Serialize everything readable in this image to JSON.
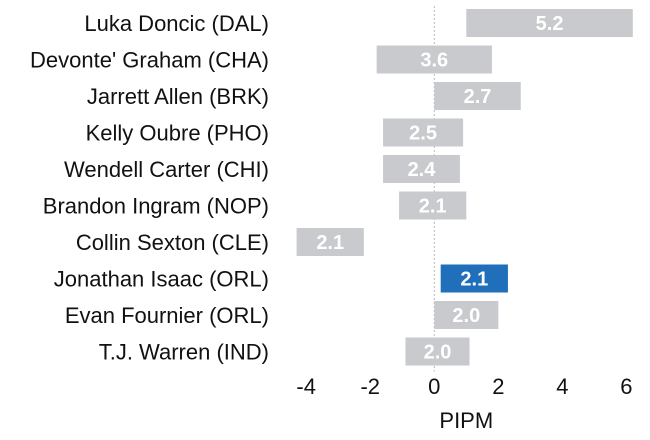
{
  "chart_data": {
    "type": "bar",
    "orientation": "horizontal",
    "title": "",
    "xlabel": "PIPM",
    "ylabel": "",
    "xlim": [
      -4.6,
      6.3
    ],
    "xticks": [
      -4,
      -2,
      0,
      2,
      4,
      6
    ],
    "zero_line": "dotted",
    "grid": false,
    "colors": {
      "default_bar": "#c8cacd",
      "highlight_bar": "#1f6fba",
      "label_text": "#ffffff"
    },
    "categories": [
      "Luka Doncic (DAL)",
      "Devonte' Graham (CHA)",
      "Jarrett Allen (BRK)",
      "Kelly Oubre (PHO)",
      "Wendell Carter (CHI)",
      "Brandon Ingram (NOP)",
      "Collin Sexton (CLE)",
      "Jonathan Isaac (ORL)",
      "Evan Fournier (ORL)",
      "T.J. Warren (IND)"
    ],
    "bars": [
      {
        "start": 1.0,
        "end": 6.2,
        "label": "5.2",
        "highlight": false
      },
      {
        "start": -1.8,
        "end": 1.8,
        "label": "3.6",
        "highlight": false
      },
      {
        "start": 0.0,
        "end": 2.7,
        "label": "2.7",
        "highlight": false
      },
      {
        "start": -1.6,
        "end": 0.9,
        "label": "2.5",
        "highlight": false
      },
      {
        "start": -1.6,
        "end": 0.8,
        "label": "2.4",
        "highlight": false
      },
      {
        "start": -1.1,
        "end": 1.0,
        "label": "2.1",
        "highlight": false
      },
      {
        "start": -4.3,
        "end": -2.2,
        "label": "2.1",
        "highlight": false
      },
      {
        "start": 0.2,
        "end": 2.3,
        "label": "2.1",
        "highlight": true
      },
      {
        "start": 0.0,
        "end": 2.0,
        "label": "2.0",
        "highlight": false
      },
      {
        "start": -0.9,
        "end": 1.1,
        "label": "2.0",
        "highlight": false
      }
    ]
  }
}
